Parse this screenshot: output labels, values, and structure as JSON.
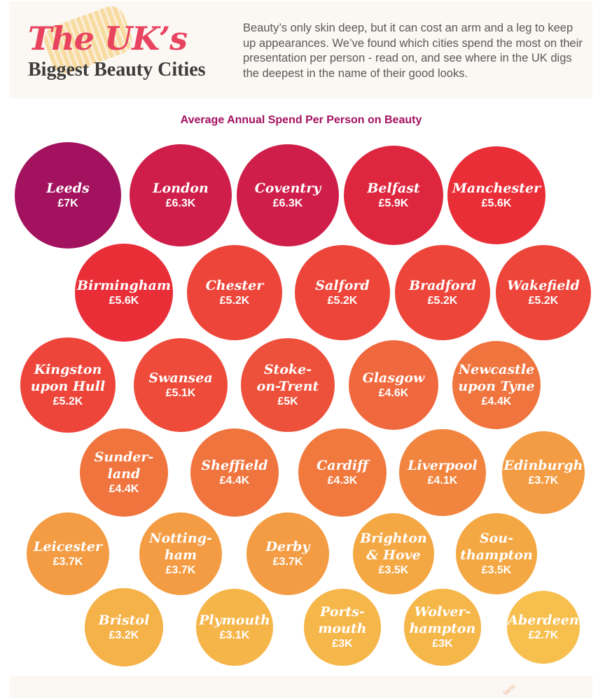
{
  "header": {
    "title_main": "The UK’s",
    "title_sub": "Biggest Beauty Cities",
    "intro": "Beauty’s only skin deep, but it can cost an arm and a leg to keep up appearances. We’ve found which cities spend the most on their presentation per person - read on, and see where in the UK digs the deepest in the name of their good looks."
  },
  "footer": {
    "mark": "tans"
  },
  "chart_data": {
    "type": "bubble",
    "title": "Average Annual Spend Per Person on Beauty",
    "unit": "£ per person per year",
    "color_scale": [
      "#a3125f",
      "#d01e49",
      "#eb2f37",
      "#ef5a3c",
      "#f1833f",
      "#f4ad45",
      "#f7bf4e"
    ],
    "points": [
      {
        "name": "Leeds",
        "label": "Leeds",
        "value": 7000,
        "display": "£7K"
      },
      {
        "name": "London",
        "label": "London",
        "value": 6300,
        "display": "£6.3K"
      },
      {
        "name": "Coventry",
        "label": "Coventry",
        "value": 6300,
        "display": "£6.3K"
      },
      {
        "name": "Belfast",
        "label": "Belfast",
        "value": 5900,
        "display": "£5.9K"
      },
      {
        "name": "Manchester",
        "label": "Manchester",
        "value": 5600,
        "display": "£5.6K"
      },
      {
        "name": "Birmingham",
        "label": "Birmingham",
        "value": 5600,
        "display": "£5.6K"
      },
      {
        "name": "Chester",
        "label": "Chester",
        "value": 5200,
        "display": "£5.2K"
      },
      {
        "name": "Salford",
        "label": "Salford",
        "value": 5200,
        "display": "£5.2K"
      },
      {
        "name": "Bradford",
        "label": "Bradford",
        "value": 5200,
        "display": "£5.2K"
      },
      {
        "name": "Wakefield",
        "label": "Wakefield",
        "value": 5200,
        "display": "£5.2K"
      },
      {
        "name": "Kingston upon Hull",
        "label": "Kingston\nupon Hull",
        "value": 5200,
        "display": "£5.2K"
      },
      {
        "name": "Swansea",
        "label": "Swansea",
        "value": 5100,
        "display": "£5.1K"
      },
      {
        "name": "Stoke-on-Trent",
        "label": "Stoke-\non-Trent",
        "value": 5000,
        "display": "£5K"
      },
      {
        "name": "Glasgow",
        "label": "Glasgow",
        "value": 4600,
        "display": "£4.6K"
      },
      {
        "name": "Newcastle upon Tyne",
        "label": "Newcastle\nupon Tyne",
        "value": 4400,
        "display": "£4.4K"
      },
      {
        "name": "Sunderland",
        "label": "Sunder-\nland",
        "value": 4400,
        "display": "£4.4K"
      },
      {
        "name": "Sheffield",
        "label": "Sheffield",
        "value": 4400,
        "display": "£4.4K"
      },
      {
        "name": "Cardiff",
        "label": "Cardiff",
        "value": 4300,
        "display": "£4.3K"
      },
      {
        "name": "Liverpool",
        "label": "Liverpool",
        "value": 4100,
        "display": "£4.1K"
      },
      {
        "name": "Edinburgh",
        "label": "Edinburgh",
        "value": 3700,
        "display": "£3.7K"
      },
      {
        "name": "Leicester",
        "label": "Leicester",
        "value": 3700,
        "display": "£3.7K"
      },
      {
        "name": "Nottingham",
        "label": "Notting-\nham",
        "value": 3700,
        "display": "£3.7K"
      },
      {
        "name": "Derby",
        "label": "Derby",
        "value": 3700,
        "display": "£3.7K"
      },
      {
        "name": "Brighton & Hove",
        "label": "Brighton\n& Hove",
        "value": 3500,
        "display": "£3.5K"
      },
      {
        "name": "Southampton",
        "label": "Sou-\nthampton",
        "value": 3500,
        "display": "£3.5K"
      },
      {
        "name": "Bristol",
        "label": "Bristol",
        "value": 3200,
        "display": "£3.2K"
      },
      {
        "name": "Plymouth",
        "label": "Plymouth",
        "value": 3100,
        "display": "£3.1K"
      },
      {
        "name": "Portsmouth",
        "label": "Ports-\nmouth",
        "value": 3000,
        "display": "£3K"
      },
      {
        "name": "Wolverhampton",
        "label": "Wolver-\nhampton",
        "value": 3000,
        "display": "£3K"
      },
      {
        "name": "Aberdeen",
        "label": "Aberdeen",
        "value": 2700,
        "display": "£2.7K"
      }
    ]
  }
}
